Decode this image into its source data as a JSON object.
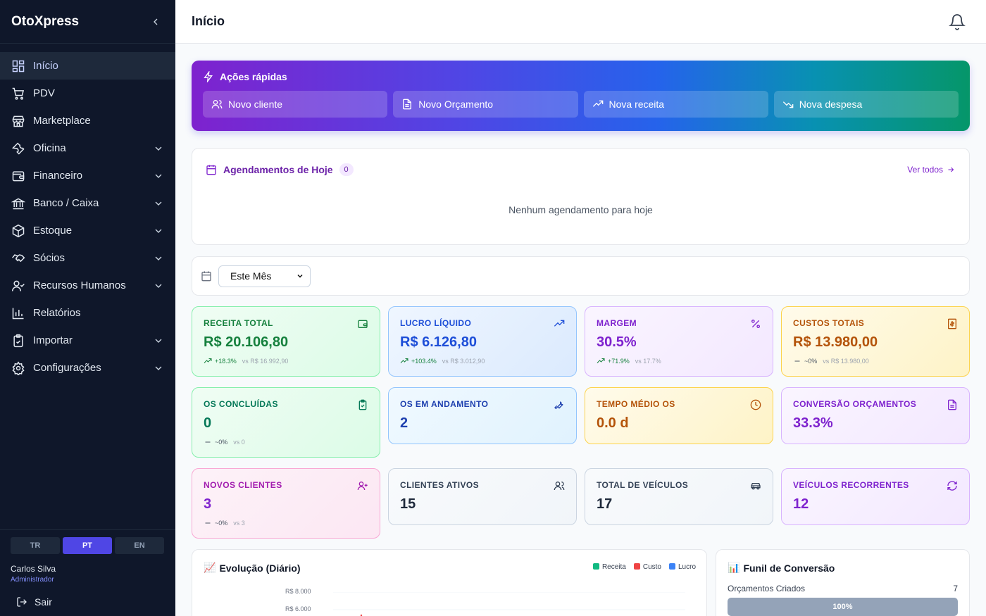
{
  "app": {
    "name": "OtoXpress"
  },
  "header": {
    "title": "Início"
  },
  "sidebar": {
    "items": [
      {
        "label": "Início",
        "icon": "dashboard-icon",
        "active": true,
        "expandable": false
      },
      {
        "label": "PDV",
        "icon": "cart-icon",
        "expandable": false
      },
      {
        "label": "Marketplace",
        "icon": "store-icon",
        "expandable": false
      },
      {
        "label": "Oficina",
        "icon": "wrench-icon",
        "expandable": true
      },
      {
        "label": "Financeiro",
        "icon": "wallet-icon",
        "expandable": true
      },
      {
        "label": "Banco / Caixa",
        "icon": "bank-icon",
        "expandable": true
      },
      {
        "label": "Estoque",
        "icon": "box-icon",
        "expandable": true
      },
      {
        "label": "Sócios",
        "icon": "handshake-icon",
        "expandable": true
      },
      {
        "label": "Recursos Humanos",
        "icon": "user-check-icon",
        "expandable": true
      },
      {
        "label": "Relatórios",
        "icon": "bar-chart-icon",
        "expandable": false
      },
      {
        "label": "Importar",
        "icon": "clipboard-icon",
        "expandable": true
      },
      {
        "label": "Configurações",
        "icon": "gear-icon",
        "expandable": true
      }
    ],
    "languages": [
      "TR",
      "PT",
      "EN"
    ],
    "active_language": "PT",
    "user": {
      "name": "Carlos Silva",
      "role": "Administrador"
    },
    "logout_label": "Sair"
  },
  "quick_actions": {
    "title": "Ações rápidas",
    "buttons": [
      {
        "label": "Novo cliente",
        "icon": "users-icon"
      },
      {
        "label": "Novo Orçamento",
        "icon": "file-icon"
      },
      {
        "label": "Nova receita",
        "icon": "trending-up-icon"
      },
      {
        "label": "Nova despesa",
        "icon": "trending-down-icon"
      }
    ]
  },
  "appointments": {
    "title": "Agendamentos de Hoje",
    "count": "0",
    "see_all": "Ver todos",
    "empty_text": "Nenhum agendamento para hoje"
  },
  "filter": {
    "period": "Este Mês"
  },
  "kpis": [
    {
      "label": "RECEITA TOTAL",
      "value": "R$ 20.106,80",
      "change": "+18.3%",
      "compare": "vs R$ 16.992,90",
      "trend": "up",
      "icon": "wallet-icon"
    },
    {
      "label": "LUCRO LÍQUIDO",
      "value": "R$ 6.126,80",
      "change": "+103.4%",
      "compare": "vs R$ 3.012,90",
      "trend": "up",
      "icon": "trending-up-icon"
    },
    {
      "label": "MARGEM",
      "value": "30.5%",
      "change": "+71.9%",
      "compare": "vs 17.7%",
      "trend": "up",
      "icon": "percent-icon"
    },
    {
      "label": "CUSTOS TOTAIS",
      "value": "R$ 13.980,00",
      "change": "~0%",
      "compare": "vs R$ 13.980,00",
      "trend": "flat",
      "icon": "receipt-icon"
    },
    {
      "label": "OS CONCLUÍDAS",
      "value": "0",
      "change": "~0%",
      "compare": "vs 0",
      "trend": "flat",
      "icon": "clipboard-check-icon"
    },
    {
      "label": "OS EM ANDAMENTO",
      "value": "2",
      "icon": "wrench-icon"
    },
    {
      "label": "TEMPO MÉDIO OS",
      "value": "0.0 d",
      "icon": "clock-icon"
    },
    {
      "label": "CONVERSÃO ORÇAMENTOS",
      "value": "33.3%",
      "icon": "file-icon"
    },
    {
      "label": "NOVOS CLIENTES",
      "value": "3",
      "change": "~0%",
      "compare": "vs 3",
      "trend": "flat",
      "icon": "user-plus-icon"
    },
    {
      "label": "CLIENTES ATIVOS",
      "value": "15",
      "icon": "users-icon"
    },
    {
      "label": "TOTAL DE VEÍCULOS",
      "value": "17",
      "icon": "car-icon"
    },
    {
      "label": "VEÍCULOS RECORRENTES",
      "value": "12",
      "icon": "refresh-icon"
    }
  ],
  "evolution": {
    "title": "Evolução (Diário)",
    "emoji": "📈",
    "legend": [
      "Receita",
      "Custo",
      "Lucro"
    ],
    "colors": {
      "Receita": "#10b981",
      "Custo": "#ef4444",
      "Lucro": "#3b82f6"
    },
    "y_ticks": [
      "R$ 8.000",
      "R$ 6.000"
    ]
  },
  "funnel": {
    "title": "Funil de Conversão",
    "emoji": "📊",
    "rows": [
      {
        "label": "Orçamentos Criados",
        "count": "7",
        "percent": "100%"
      }
    ]
  }
}
